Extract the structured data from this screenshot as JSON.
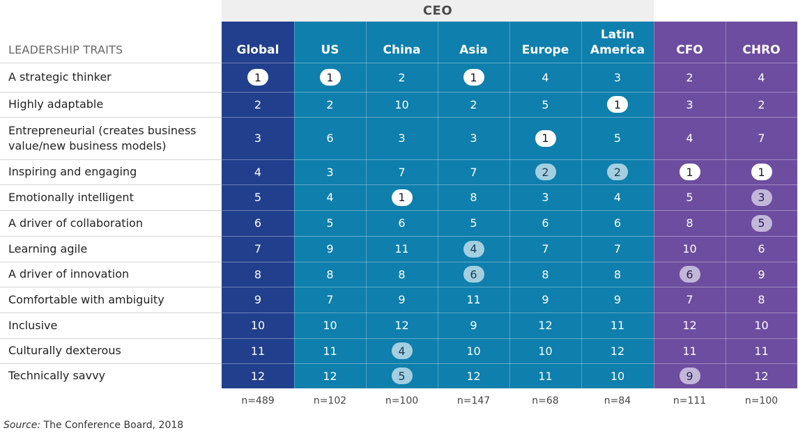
{
  "chart_data": {
    "type": "table",
    "group_header": "CEO",
    "row_header": "LEADERSHIP TRAITS",
    "columns": [
      {
        "label": "Global",
        "label_lines": [
          "Global"
        ],
        "group": "global"
      },
      {
        "label": "US",
        "label_lines": [
          "US"
        ],
        "group": "ceo"
      },
      {
        "label": "China",
        "label_lines": [
          "China"
        ],
        "group": "ceo"
      },
      {
        "label": "Asia",
        "label_lines": [
          "Asia"
        ],
        "group": "ceo"
      },
      {
        "label": "Europe",
        "label_lines": [
          "Europe"
        ],
        "group": "ceo"
      },
      {
        "label": "Latin America",
        "label_lines": [
          "Latin",
          "America"
        ],
        "group": "ceo"
      },
      {
        "label": "CFO",
        "label_lines": [
          "CFO"
        ],
        "group": "other"
      },
      {
        "label": "CHRO",
        "label_lines": [
          "CHRO"
        ],
        "group": "other"
      }
    ],
    "rows": [
      {
        "trait": "A strategic thinker",
        "trait_lines": [
          "A strategic thinker"
        ],
        "values": [
          1,
          1,
          2,
          1,
          4,
          3,
          2,
          4
        ]
      },
      {
        "trait": "Highly adaptable",
        "trait_lines": [
          "Highly adaptable"
        ],
        "values": [
          2,
          2,
          10,
          2,
          5,
          1,
          3,
          2
        ]
      },
      {
        "trait": "Entrepreneurial (creates business value/new business models)",
        "trait_lines": [
          "Entrepreneurial (creates business",
          "value/new business models)"
        ],
        "values": [
          3,
          6,
          3,
          3,
          1,
          5,
          4,
          7
        ]
      },
      {
        "trait": "Inspiring and engaging",
        "trait_lines": [
          "Inspiring and engaging"
        ],
        "values": [
          4,
          3,
          7,
          7,
          2,
          2,
          1,
          1
        ]
      },
      {
        "trait": "Emotionally intelligent",
        "trait_lines": [
          "Emotionally intelligent"
        ],
        "values": [
          5,
          4,
          1,
          8,
          3,
          4,
          5,
          3
        ]
      },
      {
        "trait": "A driver of collaboration",
        "trait_lines": [
          "A driver of collaboration"
        ],
        "values": [
          6,
          5,
          6,
          5,
          6,
          6,
          8,
          5
        ]
      },
      {
        "trait": "Learning agile",
        "trait_lines": [
          "Learning agile"
        ],
        "values": [
          7,
          9,
          11,
          4,
          7,
          7,
          10,
          6
        ]
      },
      {
        "trait": "A driver of innovation",
        "trait_lines": [
          "A driver of innovation"
        ],
        "values": [
          8,
          8,
          8,
          6,
          8,
          8,
          6,
          9
        ]
      },
      {
        "trait": "Comfortable with ambiguity",
        "trait_lines": [
          "Comfortable with ambiguity"
        ],
        "values": [
          9,
          7,
          9,
          11,
          9,
          9,
          7,
          8
        ]
      },
      {
        "trait": "Inclusive",
        "trait_lines": [
          "Inclusive"
        ],
        "values": [
          10,
          10,
          12,
          9,
          12,
          11,
          12,
          10
        ]
      },
      {
        "trait": "Culturally dexterous",
        "trait_lines": [
          "Culturally dexterous"
        ],
        "values": [
          11,
          11,
          4,
          10,
          10,
          12,
          11,
          11
        ]
      },
      {
        "trait": "Technically savvy",
        "trait_lines": [
          "Technically savvy"
        ],
        "values": [
          12,
          12,
          5,
          12,
          11,
          10,
          9,
          12
        ]
      }
    ],
    "highlights": [
      {
        "row": 0,
        "col": 0,
        "style": "first"
      },
      {
        "row": 0,
        "col": 1,
        "style": "first"
      },
      {
        "row": 0,
        "col": 3,
        "style": "first"
      },
      {
        "row": 1,
        "col": 5,
        "style": "first"
      },
      {
        "row": 2,
        "col": 4,
        "style": "first"
      },
      {
        "row": 3,
        "col": 4,
        "style": "ceo-diff"
      },
      {
        "row": 3,
        "col": 5,
        "style": "ceo-diff"
      },
      {
        "row": 3,
        "col": 6,
        "style": "first"
      },
      {
        "row": 3,
        "col": 7,
        "style": "first"
      },
      {
        "row": 4,
        "col": 2,
        "style": "first"
      },
      {
        "row": 4,
        "col": 7,
        "style": "purple-diff"
      },
      {
        "row": 5,
        "col": 7,
        "style": "purple-diff"
      },
      {
        "row": 6,
        "col": 3,
        "style": "ceo-diff"
      },
      {
        "row": 7,
        "col": 3,
        "style": "ceo-diff"
      },
      {
        "row": 7,
        "col": 6,
        "style": "purple-diff"
      },
      {
        "row": 10,
        "col": 2,
        "style": "ceo-diff"
      },
      {
        "row": 11,
        "col": 2,
        "style": "ceo-diff"
      },
      {
        "row": 11,
        "col": 6,
        "style": "purple-diff"
      }
    ],
    "sample_sizes": [
      "n=489",
      "n=102",
      "n=100",
      "n=147",
      "n=68",
      "n=84",
      "n=111",
      "n=100"
    ],
    "colors": {
      "global": "#213f8c",
      "ceo": "#0f7fad",
      "other": "#6d4d9f",
      "ceo_band": "#efefef",
      "badge_first": "#ffffff",
      "badge_ceo": "#a4cfe1",
      "badge_purple": "#c3b7d9"
    }
  },
  "source": {
    "prefix": "Source:",
    "text": " The Conference Board, 2018"
  }
}
